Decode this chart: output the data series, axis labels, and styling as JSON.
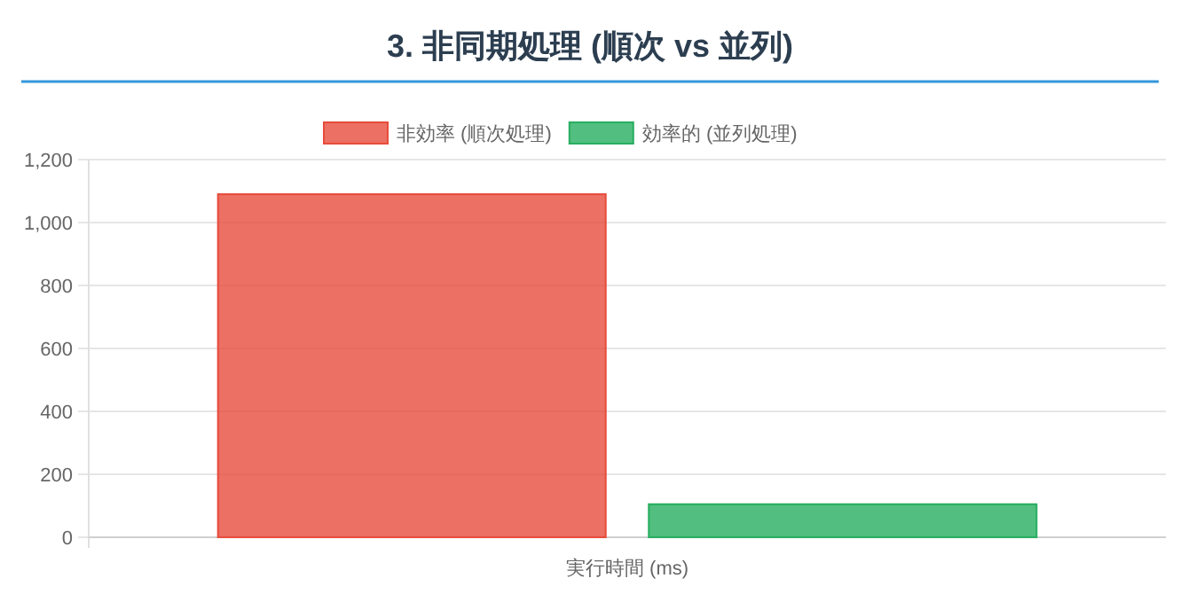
{
  "chart_data": {
    "type": "bar",
    "title": "3. 非同期処理 (順次 vs 並列)",
    "categories": [
      "実行時間 (ms)"
    ],
    "series": [
      {
        "name": "非効率 (順次処理)",
        "color": "#e74c3c",
        "values": [
          1090
        ]
      },
      {
        "name": "効率的 (並列処理)",
        "color": "#27ae60",
        "values": [
          105
        ]
      }
    ],
    "ylim": [
      0,
      1200
    ],
    "yticks": [
      0,
      200,
      400,
      600,
      800,
      {
        "value": 1000,
        "label": "1,000"
      },
      {
        "value": 1200,
        "label": "1,200"
      }
    ],
    "grid": "y",
    "legend": "top"
  }
}
